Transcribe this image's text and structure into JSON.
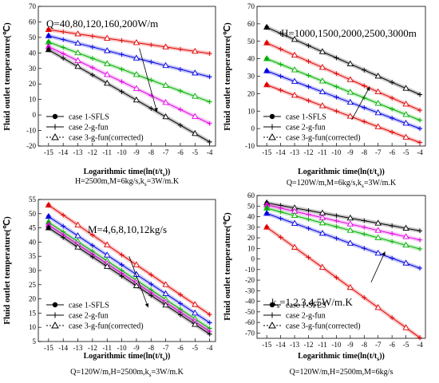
{
  "figure": {
    "x_label": "Logarithmic time(ln(t/t",
    "x_label_sub": "s",
    "x_label_end": "))",
    "y_label": "Fluid outlet temperature(℃)"
  },
  "chart_data": [
    {
      "type": "line",
      "panel": "top-left",
      "annotation": "Q=40,80,120,160,200W/m",
      "caption": "H=2500m,M=6kg/s,k",
      "caption_sub": "s",
      "caption_end": "=3W/m.K",
      "x": [
        -15,
        -14,
        -13,
        -12,
        -11,
        -10,
        -9,
        -8,
        -7,
        -6,
        -5,
        -4
      ],
      "xlim": [
        -15.7,
        -3.6
      ],
      "ylim": [
        -20,
        70
      ],
      "yticks": [
        -20,
        -10,
        0,
        10,
        20,
        30,
        40,
        50,
        60,
        70
      ],
      "series": [
        {
          "color": "#e00000",
          "values": [
            55,
            53.6,
            52.2,
            50.8,
            49.4,
            48,
            46.6,
            45.2,
            43.8,
            42.4,
            41,
            39.6
          ]
        },
        {
          "color": "#0000e0",
          "values": [
            51,
            48.6,
            46.2,
            43.8,
            41.4,
            39,
            36.6,
            34.2,
            31.8,
            29.4,
            27,
            24.6
          ]
        },
        {
          "color": "#00b000",
          "values": [
            47,
            43.5,
            40,
            36.5,
            33,
            29.5,
            26,
            22.5,
            19,
            15.5,
            12,
            8.5
          ]
        },
        {
          "color": "#e000e0",
          "values": [
            44,
            39.5,
            35,
            30.5,
            26,
            21.5,
            17,
            12.5,
            8,
            3.5,
            -1,
            -5.5
          ]
        },
        {
          "color": "#000000",
          "values": [
            42,
            36.6,
            31.2,
            25.8,
            20.4,
            15,
            9.6,
            4.2,
            -1.2,
            -6.6,
            -12,
            -17.4
          ]
        }
      ],
      "arrow": {
        "from": [
          -8.8,
          43
        ],
        "to": [
          -7.6,
          2
        ]
      },
      "legend": [
        "case 1-SFLS",
        "case 2-g-fun",
        "case 3-g-fun(corrected)"
      ]
    },
    {
      "type": "line",
      "panel": "top-right",
      "annotation": "H=1000,1500,2000,2500,3000m",
      "caption": "Q=120W/m,M=6kg/s,k",
      "caption_sub": "s",
      "caption_end": "=3W/m.K",
      "x": [
        -15,
        -14,
        -13,
        -12,
        -11,
        -10,
        -9,
        -8,
        -7,
        -6,
        -5,
        -4
      ],
      "xlim": [
        -15.7,
        -3.6
      ],
      "ylim": [
        -10,
        70
      ],
      "yticks": [
        -10,
        0,
        10,
        20,
        30,
        40,
        50,
        60,
        70
      ],
      "series": [
        {
          "color": "#000000",
          "values": [
            58,
            54.5,
            51,
            47.5,
            44,
            40.5,
            37,
            33.5,
            30,
            26.5,
            23,
            19.5
          ]
        },
        {
          "color": "#e00000",
          "values": [
            49,
            45.5,
            42,
            38.5,
            35,
            31.5,
            28,
            24.5,
            21,
            17.5,
            14,
            10.5
          ]
        },
        {
          "color": "#00b000",
          "values": [
            40,
            36.8,
            33.6,
            30.4,
            27.2,
            24,
            20.8,
            17.6,
            14.4,
            11.2,
            8,
            4.8
          ]
        },
        {
          "color": "#0000e0",
          "values": [
            33,
            30,
            27,
            24,
            21,
            18,
            15,
            12,
            9,
            6,
            3,
            0
          ]
        },
        {
          "color": "#e00000",
          "values": [
            25,
            22,
            19,
            16,
            13,
            10,
            7,
            4,
            1,
            -2,
            -5,
            -8
          ]
        }
      ],
      "arrow": {
        "from": [
          -8.9,
          5
        ],
        "to": [
          -7.6,
          24
        ]
      },
      "legend": [
        "case 1-SFLS",
        "case 2-g-fun",
        "case 3-g-fun(corrected)"
      ]
    },
    {
      "type": "line",
      "panel": "bottom-left",
      "annotation": "M=4,6,8,10,12kg/s",
      "caption": "Q=120W/m,H=2500m,k",
      "caption_sub": "s",
      "caption_end": "=3W/m.K",
      "x": [
        -15,
        -14,
        -13,
        -12,
        -11,
        -10,
        -9,
        -8,
        -7,
        -6,
        -5,
        -4
      ],
      "xlim": [
        -15.7,
        -3.6
      ],
      "ylim": [
        5,
        55
      ],
      "yticks": [
        5,
        10,
        15,
        20,
        25,
        30,
        35,
        40,
        45,
        50,
        55
      ],
      "series": [
        {
          "color": "#e00000",
          "values": [
            53,
            49.5,
            46,
            42.5,
            39,
            35.5,
            32,
            28.5,
            25,
            21.5,
            18,
            14.5
          ]
        },
        {
          "color": "#0000e0",
          "values": [
            49,
            45.6,
            42.2,
            38.8,
            35.4,
            32,
            28.6,
            25.2,
            21.8,
            18.4,
            15,
            11.6
          ]
        },
        {
          "color": "#00b000",
          "values": [
            47,
            43.6,
            40.2,
            36.8,
            33.4,
            30,
            26.6,
            23.2,
            19.8,
            16.4,
            13,
            9.6
          ]
        },
        {
          "color": "#e000e0",
          "values": [
            46,
            42.6,
            39.2,
            35.8,
            32.4,
            29,
            25.6,
            22.2,
            18.8,
            15.4,
            12,
            8.6
          ]
        },
        {
          "color": "#000000",
          "values": [
            45,
            41.6,
            38.2,
            34.8,
            31.4,
            28,
            24.6,
            21.2,
            17.8,
            14.4,
            11,
            7.6
          ]
        }
      ],
      "arrow": {
        "from": [
          -9.5,
          35
        ],
        "to": [
          -8.2,
          17
        ]
      },
      "legend": [
        "case 1-SFLS",
        "case 2-g-fun",
        "case 3-g-fun(corrected)"
      ]
    },
    {
      "type": "line",
      "panel": "bottom-right",
      "annotation": "k",
      "annotation_sub": "s",
      "annotation_end": "=1,2,3,4,5W/m.K",
      "caption": "Q=120W/m,H=2500m,M=6kg/s",
      "x": [
        -15,
        -14,
        -13,
        -12,
        -11,
        -10,
        -9,
        -8,
        -7,
        -6,
        -5,
        -4
      ],
      "xlim": [
        -15.7,
        -3.6
      ],
      "ylim": [
        -75,
        60
      ],
      "yticks": [
        -70,
        -60,
        -50,
        -40,
        -30,
        -20,
        -10,
        0,
        10,
        20,
        30,
        40,
        50,
        60
      ],
      "series": [
        {
          "color": "#000000",
          "values": [
            53,
            50.6,
            48.2,
            45.8,
            43.4,
            41,
            38.6,
            36.2,
            33.8,
            31.4,
            29,
            26.6
          ]
        },
        {
          "color": "#e000e0",
          "values": [
            51,
            48,
            45,
            42,
            39,
            36,
            33,
            30,
            27,
            24,
            21,
            18
          ]
        },
        {
          "color": "#00b000",
          "values": [
            48,
            44.5,
            41,
            37.5,
            34,
            30.5,
            27,
            23.5,
            20,
            16.5,
            13,
            9.5
          ]
        },
        {
          "color": "#0000e0",
          "values": [
            43,
            38.3,
            33.6,
            28.9,
            24.2,
            19.5,
            14.8,
            10.1,
            5.4,
            0.7,
            -4,
            -8.7
          ]
        },
        {
          "color": "#e00000",
          "values": [
            30,
            20.5,
            11,
            1.5,
            -8,
            -17.5,
            -27,
            -36.5,
            -46,
            -55.5,
            -65,
            -74.5
          ]
        }
      ],
      "arrow": {
        "from": [
          -7.5,
          -22
        ],
        "to": [
          -6.5,
          7
        ]
      },
      "legend": [
        "case 1-SFLS",
        "case 2-g-fun",
        "case 3-g-fun(corrected)"
      ]
    }
  ]
}
